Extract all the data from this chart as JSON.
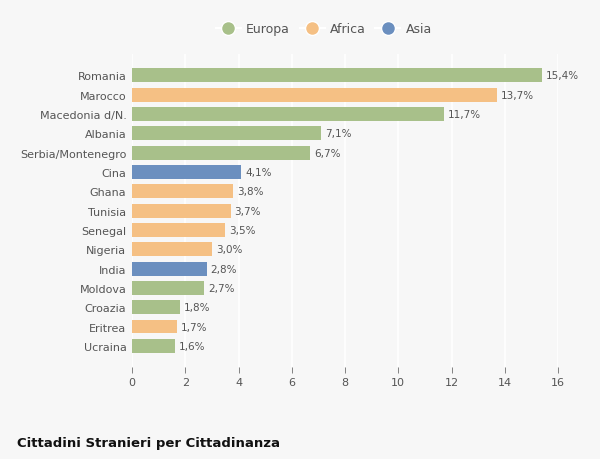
{
  "categories": [
    "Ucraina",
    "Eritrea",
    "Croazia",
    "Moldova",
    "India",
    "Nigeria",
    "Senegal",
    "Tunisia",
    "Ghana",
    "Cina",
    "Serbia/Montenegro",
    "Albania",
    "Macedonia d/N.",
    "Marocco",
    "Romania"
  ],
  "values": [
    1.6,
    1.7,
    1.8,
    2.7,
    2.8,
    3.0,
    3.5,
    3.7,
    3.8,
    4.1,
    6.7,
    7.1,
    11.7,
    13.7,
    15.4
  ],
  "labels": [
    "1,6%",
    "1,7%",
    "1,8%",
    "2,7%",
    "2,8%",
    "3,0%",
    "3,5%",
    "3,7%",
    "3,8%",
    "4,1%",
    "6,7%",
    "7,1%",
    "11,7%",
    "13,7%",
    "15,4%"
  ],
  "continents": [
    "Europa",
    "Africa",
    "Europa",
    "Europa",
    "Asia",
    "Africa",
    "Africa",
    "Africa",
    "Africa",
    "Asia",
    "Europa",
    "Europa",
    "Europa",
    "Africa",
    "Europa"
  ],
  "colors": {
    "Europa": "#a8c08a",
    "Africa": "#f5c084",
    "Asia": "#6b8fbf"
  },
  "title": "Cittadini Stranieri per Cittadinanza",
  "xlim": [
    0,
    16
  ],
  "xticks": [
    0,
    2,
    4,
    6,
    8,
    10,
    12,
    14,
    16
  ],
  "background_color": "#f7f7f7",
  "grid_color": "#ffffff",
  "bar_height": 0.72
}
